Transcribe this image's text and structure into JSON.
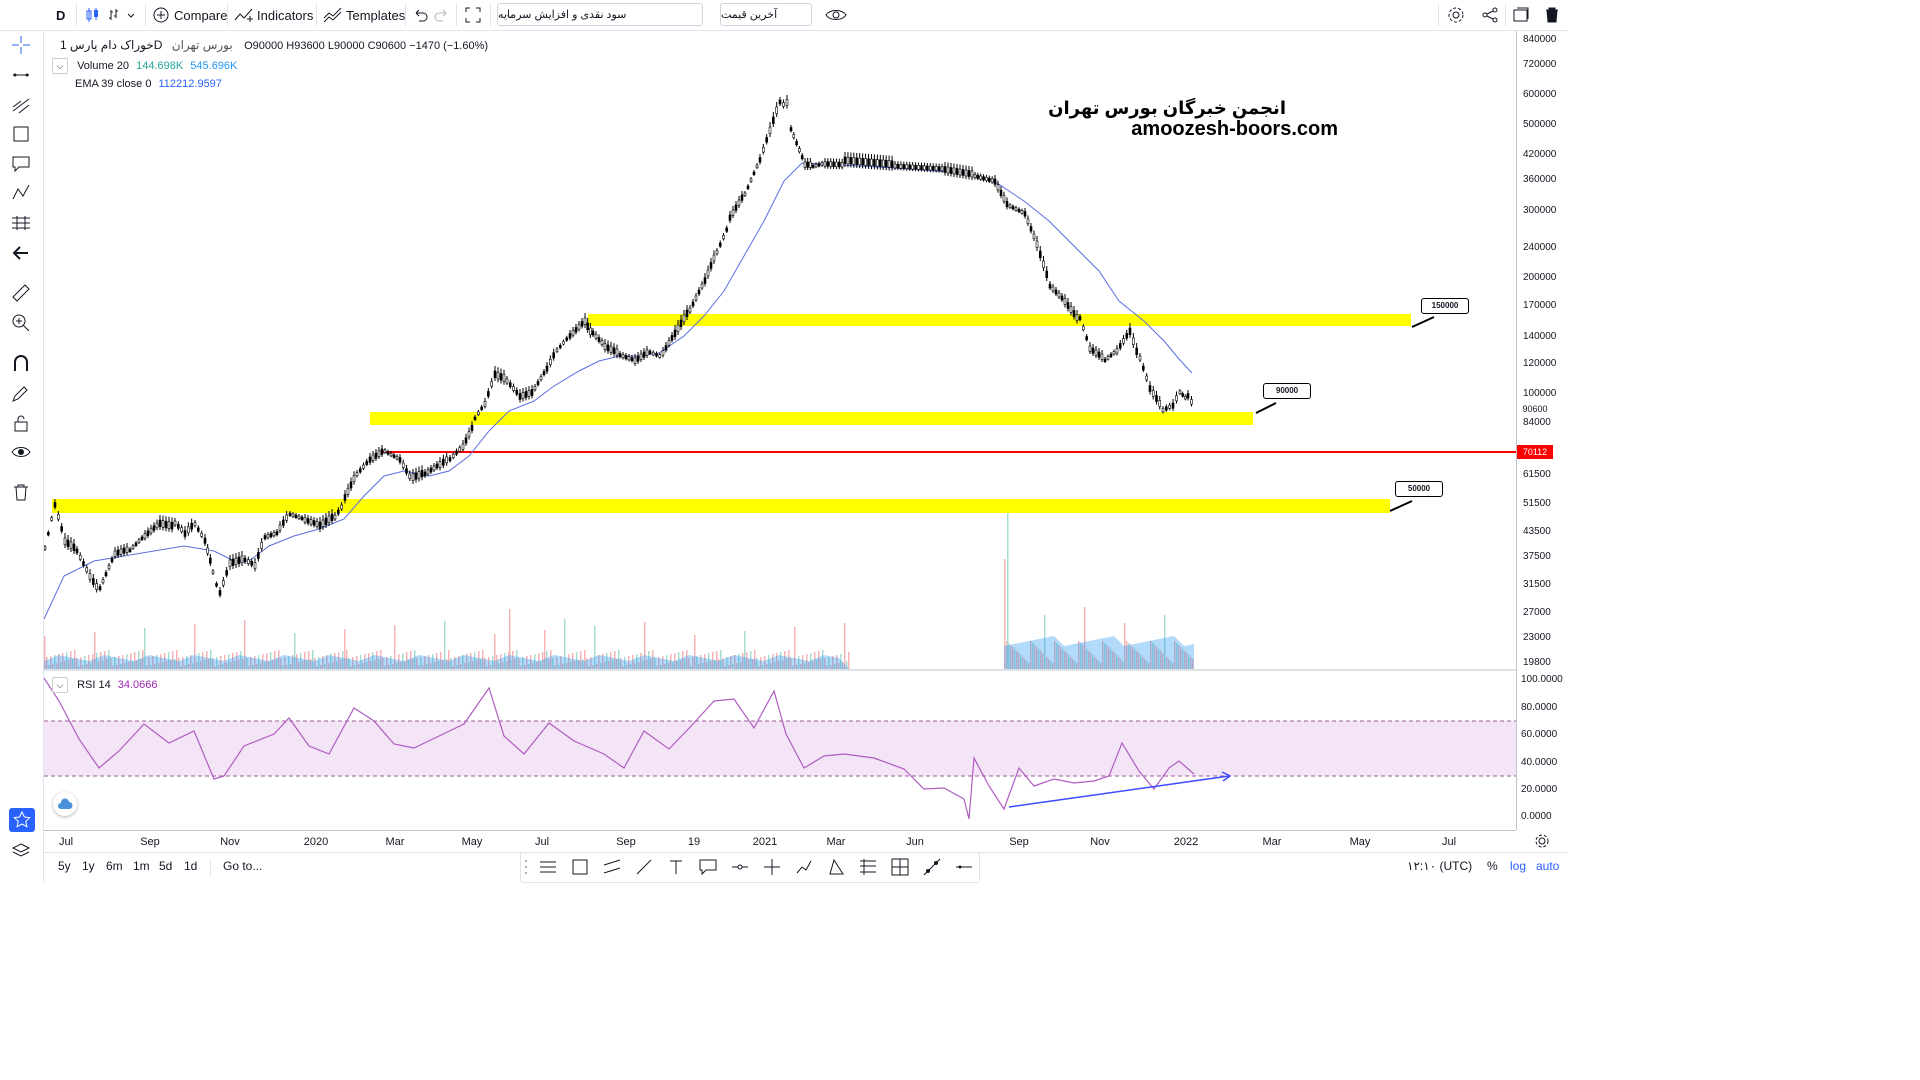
{
  "header": {
    "interval": "D",
    "compare": "Compare",
    "indicators": "Indicators",
    "templates": "Templates",
    "symbol_dropdown": "سود نقدی و افزایش سرمایه",
    "price_dropdown": "آخرین قیمت"
  },
  "legend": {
    "title": "خوراک دام پارس",
    "interval": "1D",
    "exchange": "بورس تهران",
    "ohlc": "O90000  H93600  L90000  C90600  −1470 (−1.60%)",
    "volume_label": "Volume 20",
    "volume_v1": "144.698K",
    "volume_v2": "545.696K",
    "ema_label": "EMA 39 close 0",
    "ema_value": "112212.9597",
    "rsi_label": "RSI 14",
    "rsi_value": "34.0666"
  },
  "watermark": {
    "line1": "انجمن خبرگان بورس تهران",
    "line2": "amoozesh-boors.com"
  },
  "price_scale": [
    "840000",
    "720000",
    "600000",
    "500000",
    "420000",
    "360000",
    "300000",
    "240000",
    "200000",
    "170000",
    "140000",
    "120000",
    "100000",
    "90600",
    "84000",
    "70112",
    "61500",
    "51500",
    "43500",
    "37500",
    "31500",
    "27000",
    "23000",
    "19800"
  ],
  "rsi_scale": [
    "100.0000",
    "80.0000",
    "60.0000",
    "40.0000",
    "20.0000",
    "0.0000"
  ],
  "time_axis": [
    "Jul",
    "Sep",
    "Nov",
    "2020",
    "Mar",
    "May",
    "Jul",
    "Sep",
    "19",
    "2021",
    "Mar",
    "Jun",
    "Sep",
    "Nov",
    "2022",
    "Mar",
    "May",
    "Jul"
  ],
  "callouts": {
    "c150": "150000",
    "c90": "90000",
    "c50": "50000"
  },
  "red_line_value": "70112",
  "last_price": "90600",
  "bottom": {
    "ranges": [
      "5y",
      "1y",
      "6m",
      "1m",
      "5d",
      "1d"
    ],
    "goto": "Go to...",
    "clock": "۱۲:۱۰ (UTC)",
    "pct": "%",
    "log": "log",
    "auto": "auto"
  },
  "colors": {
    "zone": "#ffff00",
    "support": "#ff0000",
    "ema": "#5b6ee1",
    "rsi": "#9c27b0",
    "accent": "#2962ff"
  },
  "icons": {
    "toolbar": [
      "crosshair-icon",
      "line-icon",
      "fib-icon",
      "rectangle-icon",
      "callout-icon",
      "pattern-icon",
      "measure-icon",
      "arrow-icon",
      "ruler-icon",
      "zoom-icon",
      "magnet-icon",
      "pencil-lock-icon",
      "lock-icon",
      "eye-icon",
      "trash-icon"
    ]
  }
}
